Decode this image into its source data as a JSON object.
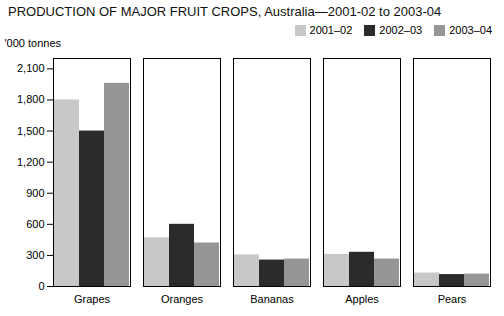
{
  "chart_data": {
    "type": "bar",
    "title": "PRODUCTION OF MAJOR FRUIT CROPS, Australia—2001-02 to 2003-04",
    "ylabel": "'000 tonnes",
    "categories": [
      "Grapes",
      "Oranges",
      "Bananas",
      "Apples",
      "Pears"
    ],
    "series": [
      {
        "name": "2001–02",
        "color": "#c8c8c8",
        "values": [
          1800,
          470,
          305,
          310,
          130
        ]
      },
      {
        "name": "2002–03",
        "color": "#2b2b2b",
        "values": [
          1500,
          600,
          255,
          330,
          115
        ]
      },
      {
        "name": "2003–04",
        "color": "#969696",
        "values": [
          1960,
          420,
          265,
          265,
          120
        ]
      }
    ],
    "ylim": [
      0,
      2200
    ],
    "yticks": [
      0,
      300,
      600,
      900,
      1200,
      1500,
      1800,
      2100
    ],
    "grid": false,
    "legend": "upper right"
  }
}
